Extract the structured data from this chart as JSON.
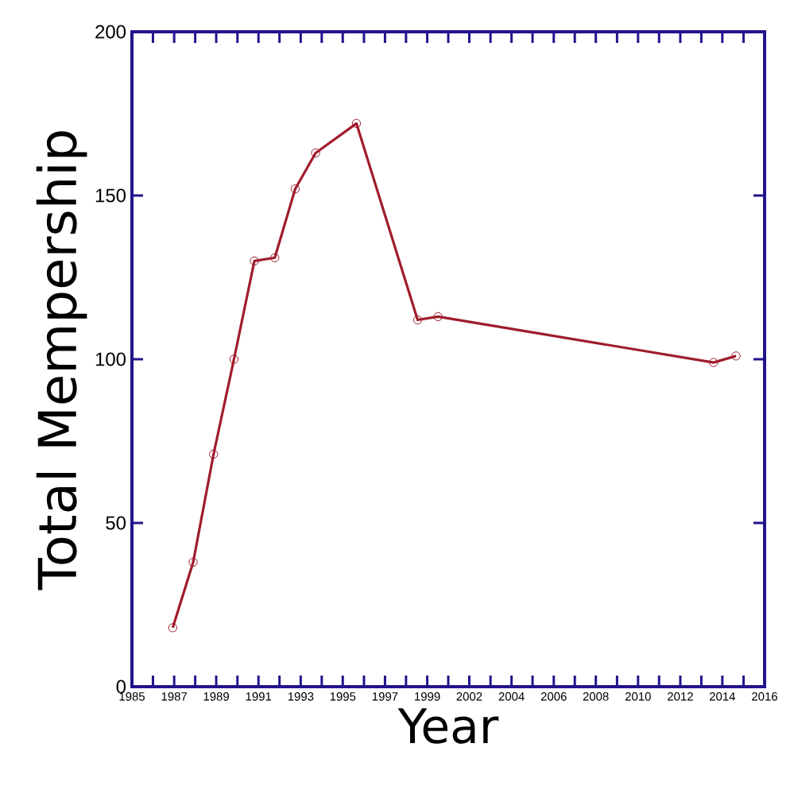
{
  "chart_data": {
    "type": "line",
    "xlabel": "Year",
    "ylabel": "Total Mempership",
    "x": [
      1987,
      1988,
      1989,
      1990,
      1991,
      1992,
      1993,
      1994,
      1996,
      1999,
      2000,
      2013.5,
      2014.6
    ],
    "values": [
      18,
      38,
      71,
      100,
      130,
      131,
      152,
      163,
      172,
      112,
      113,
      99,
      101
    ],
    "color": "#a01c2c",
    "marker": "circle",
    "line_style": "solid",
    "grid": false,
    "xlim": [
      1985,
      2016
    ],
    "ylim": [
      0,
      200
    ],
    "yticks": [
      0,
      50,
      100,
      150,
      200
    ],
    "xticks": [
      {
        "value": 1985,
        "label": "1985"
      },
      {
        "value": 1986.03,
        "label": null
      },
      {
        "value": 1987.07,
        "label": "1987"
      },
      {
        "value": 1988.1,
        "label": null
      },
      {
        "value": 1989.13,
        "label": "1989"
      },
      {
        "value": 1990.17,
        "label": null
      },
      {
        "value": 1991.2,
        "label": "1991"
      },
      {
        "value": 1992.23,
        "label": null
      },
      {
        "value": 1993.27,
        "label": "1993"
      },
      {
        "value": 1994.3,
        "label": null
      },
      {
        "value": 1995.33,
        "label": "1995"
      },
      {
        "value": 1996.37,
        "label": null
      },
      {
        "value": 1997.4,
        "label": "1997"
      },
      {
        "value": 1998.43,
        "label": null
      },
      {
        "value": 1999.47,
        "label": "1999"
      },
      {
        "value": 2000.5,
        "label": null
      },
      {
        "value": 2001.53,
        "label": "2002"
      },
      {
        "value": 2002.57,
        "label": null
      },
      {
        "value": 2003.6,
        "label": "2004"
      },
      {
        "value": 2004.63,
        "label": null
      },
      {
        "value": 2005.67,
        "label": "2006"
      },
      {
        "value": 2006.7,
        "label": null
      },
      {
        "value": 2007.73,
        "label": "2008"
      },
      {
        "value": 2008.77,
        "label": null
      },
      {
        "value": 2009.8,
        "label": "2010"
      },
      {
        "value": 2010.83,
        "label": null
      },
      {
        "value": 2011.87,
        "label": "2012"
      },
      {
        "value": 2012.9,
        "label": null
      },
      {
        "value": 2013.93,
        "label": "2014"
      },
      {
        "value": 2014.97,
        "label": null
      },
      {
        "value": 2016,
        "label": "2016"
      }
    ]
  }
}
